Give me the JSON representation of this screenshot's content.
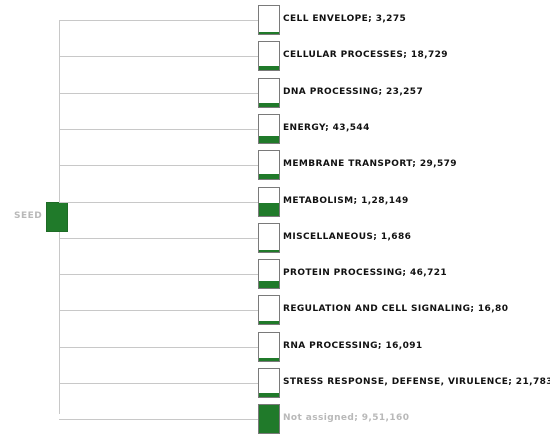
{
  "root": {
    "label": "SEED"
  },
  "colors": {
    "fill": "#207a2a",
    "line": "#c8c8c8",
    "muted_text": "#b9b9b9"
  },
  "categories": [
    {
      "label": "CELL ENVELOPE; 3,275",
      "fill_fraction": 0.08
    },
    {
      "label": "CELLULAR PROCESSES; 18,729",
      "fill_fraction": 0.13
    },
    {
      "label": "DNA PROCESSING; 23,257",
      "fill_fraction": 0.15
    },
    {
      "label": "ENERGY; 43,544",
      "fill_fraction": 0.25
    },
    {
      "label": "MEMBRANE TRANSPORT; 29,579",
      "fill_fraction": 0.18
    },
    {
      "label": "METABOLISM; 1,28,149",
      "fill_fraction": 0.45
    },
    {
      "label": "MISCELLANEOUS; 1,686",
      "fill_fraction": 0.06
    },
    {
      "label": "PROTEIN PROCESSING; 46,721",
      "fill_fraction": 0.25
    },
    {
      "label": "REGULATION AND CELL SIGNALING; 16,80",
      "fill_fraction": 0.12
    },
    {
      "label": "RNA PROCESSING; 16,091",
      "fill_fraction": 0.12
    },
    {
      "label": "STRESS RESPONSE, DEFENSE, VIRULENCE; 21,783",
      "fill_fraction": 0.14
    },
    {
      "label": "Not assigned; 9,51,160",
      "fill_fraction": 1.0,
      "muted": true
    }
  ]
}
